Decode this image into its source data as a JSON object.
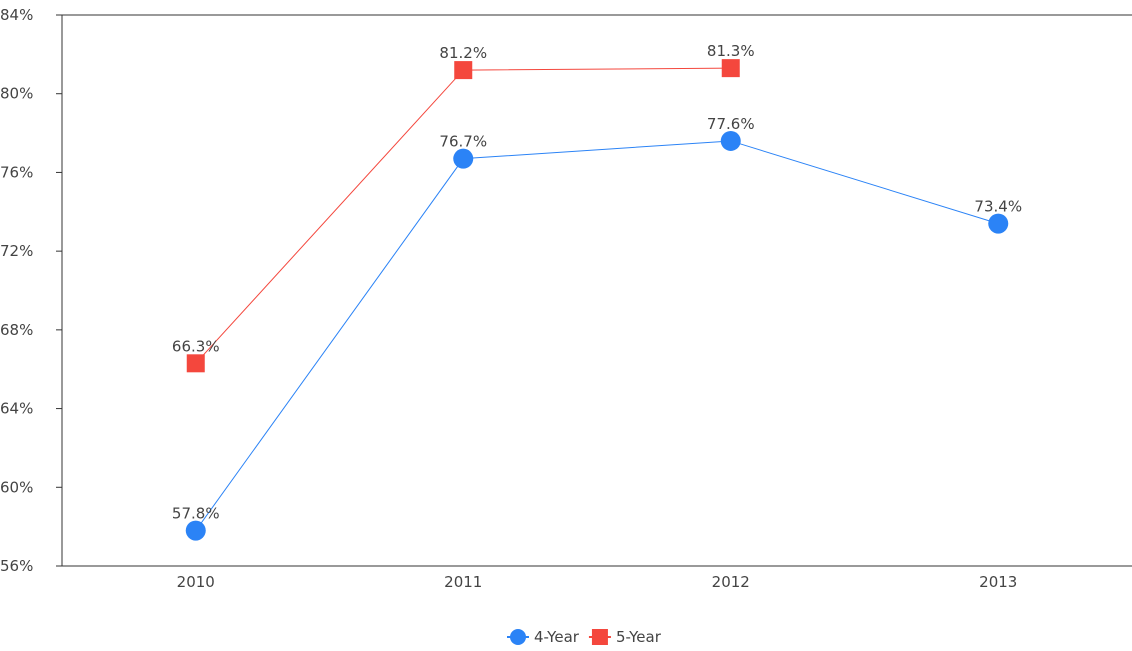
{
  "chart_data": {
    "type": "line",
    "title": "",
    "xlabel": "",
    "ylabel": "",
    "categories": [
      "2010",
      "2011",
      "2012",
      "2013"
    ],
    "ylim": [
      56,
      84
    ],
    "yticks": [
      56,
      60,
      64,
      68,
      72,
      76,
      80,
      84
    ],
    "ytick_labels": [
      "56%",
      "60%",
      "64%",
      "68%",
      "72%",
      "76%",
      "80%",
      "84%"
    ],
    "grid": false,
    "legend_position": "bottom-center",
    "series": [
      {
        "name": "4-Year",
        "marker": "circle",
        "color": "#2b83f6",
        "values": [
          57.8,
          76.7,
          77.6,
          73.4
        ],
        "labels": [
          "57.8%",
          "76.7%",
          "77.6%",
          "73.4%"
        ]
      },
      {
        "name": "5-Year",
        "marker": "square",
        "color": "#f4473d",
        "values": [
          66.3,
          81.2,
          81.3,
          null
        ],
        "labels": [
          "66.3%",
          "81.2%",
          "81.3%",
          null
        ]
      }
    ]
  }
}
